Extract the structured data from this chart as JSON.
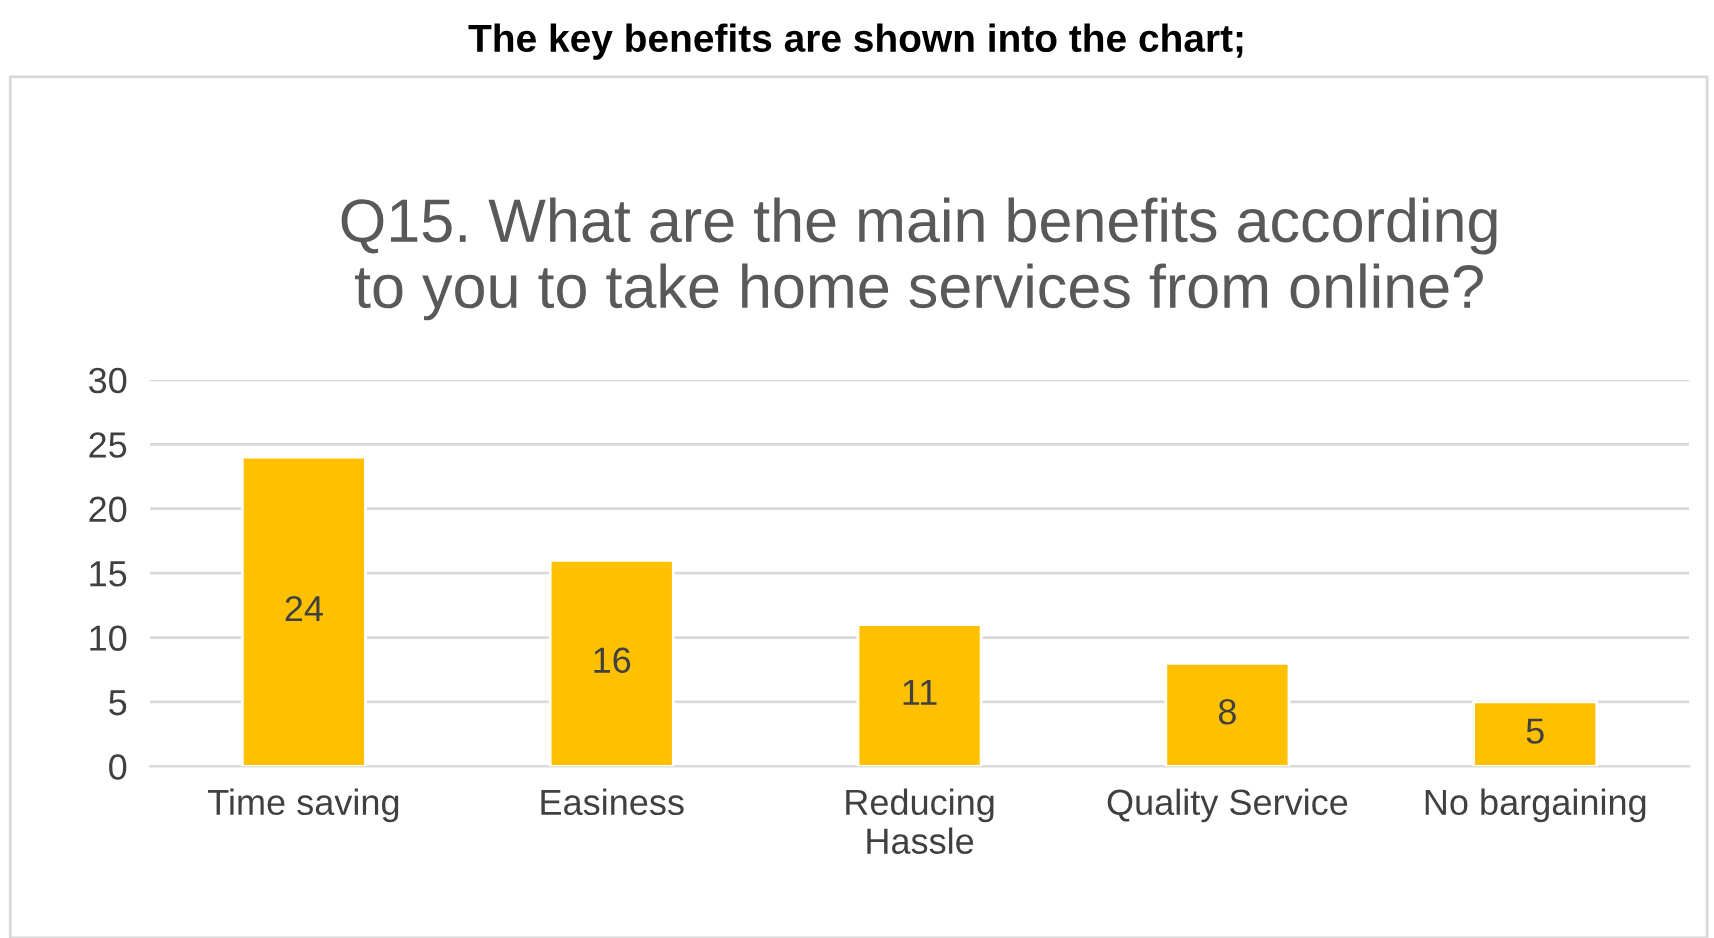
{
  "chart_data": {
    "type": "bar",
    "title": "Q15. What are the main benefits according\nto you to take home services from online?",
    "annotations": [
      "The key benefits are shown into the chart;"
    ],
    "categories": [
      "Time saving",
      "Easiness",
      "Reducing\nHassle",
      "Quality Service",
      "No bargaining"
    ],
    "values": [
      24,
      16,
      11,
      8,
      5
    ],
    "color": "#ffc000",
    "data_labels": true,
    "ylim": [
      0,
      30
    ],
    "yticks": [
      0,
      5,
      10,
      15,
      20,
      25,
      30
    ],
    "grid": "y"
  }
}
